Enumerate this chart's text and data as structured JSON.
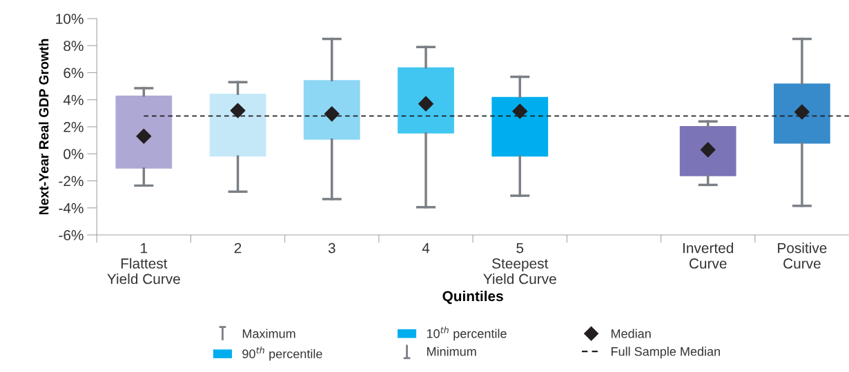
{
  "chart_data": {
    "type": "box",
    "xlabel": "Quintiles",
    "ylabel": "Next-Year Real GDP Growth",
    "categories": [
      "1\nFlattest\nYield Curve",
      "2",
      "3",
      "4",
      "5\nSteepest\nYield Curve",
      null,
      "Inverted\nCurve",
      "Positive\nCurve"
    ],
    "boxes": [
      {
        "low": -2.35,
        "q1": -1.1,
        "median": 1.3,
        "q3": 4.3,
        "high": 4.85
      },
      {
        "low": -2.8,
        "q1": -0.2,
        "median": 3.2,
        "q3": 4.45,
        "high": 5.3
      },
      {
        "low": -3.35,
        "q1": 1.05,
        "median": 2.95,
        "q3": 5.45,
        "high": 8.5
      },
      {
        "low": -3.95,
        "q1": 1.5,
        "median": 3.7,
        "q3": 6.4,
        "high": 7.9
      },
      {
        "low": -3.1,
        "q1": -0.2,
        "median": 3.15,
        "q3": 4.2,
        "high": 5.7
      },
      null,
      {
        "low": -2.3,
        "q1": -1.65,
        "median": 0.3,
        "q3": 2.05,
        "high": 2.4
      },
      {
        "low": -3.85,
        "q1": 0.75,
        "median": 3.1,
        "q3": 5.2,
        "high": 8.5
      }
    ],
    "colors": [
      "#aea8d4",
      "#c5e8f9",
      "#8dd7f5",
      "#40c6f1",
      "#00aeef",
      null,
      "#7b75b7",
      "#378bcb"
    ],
    "marker": "diamond",
    "ylim": [
      -6,
      10
    ],
    "yticks": [
      {
        "value": -6,
        "label": "-6%"
      },
      {
        "value": -4,
        "label": "-4%"
      },
      {
        "value": -2,
        "label": "-2%"
      },
      {
        "value": 0,
        "label": "0%"
      },
      {
        "value": 2,
        "label": "2%"
      },
      {
        "value": 4,
        "label": "4%"
      },
      {
        "value": 6,
        "label": "6%"
      },
      {
        "value": 8,
        "label": "8%"
      },
      {
        "value": 10,
        "label": "10%"
      }
    ],
    "ref_lines": [
      {
        "axis": "y",
        "value": 2.8,
        "label": "Full Sample Median",
        "color": "#231f20",
        "line_style": "dashed"
      }
    ],
    "annotations": [
      "Maximum",
      "90$^{th}$ percentile",
      "10$^{th}$ percentile",
      "Minimum",
      "Median"
    ],
    "legend": "bottom",
    "grid": false
  }
}
